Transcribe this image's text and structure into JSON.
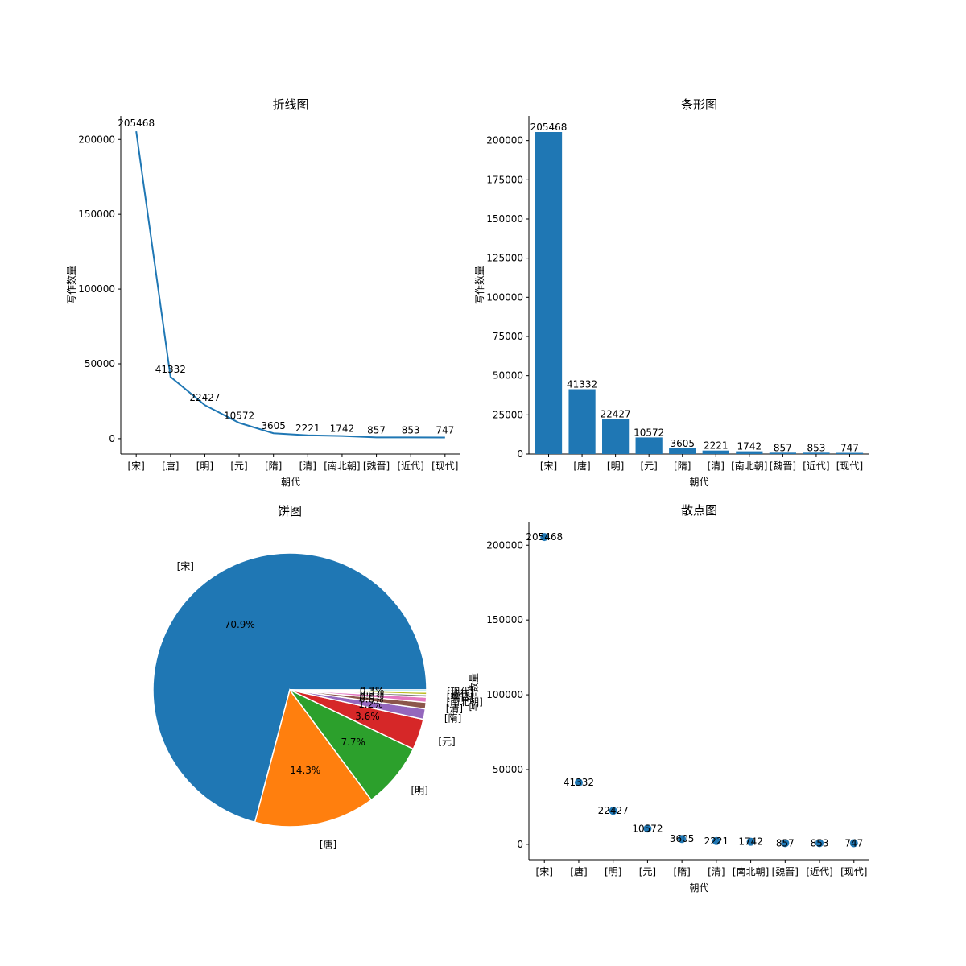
{
  "chart_data": [
    {
      "type": "line",
      "title": "折线图",
      "xlabel": "朝代",
      "ylabel": "写作数量",
      "categories": [
        "[宋]",
        "[唐]",
        "[明]",
        "[元]",
        "[隋]",
        "[清]",
        "[南北朝]",
        "[魏晋]",
        "[近代]",
        "[现代]"
      ],
      "values": [
        205468,
        41332,
        22427,
        10572,
        3605,
        2221,
        1742,
        857,
        853,
        747
      ],
      "yticks": [
        "0",
        "50000",
        "100000",
        "150000",
        "200000"
      ],
      "ylim": [
        -10274,
        215741
      ],
      "color": "#1f77b4"
    },
    {
      "type": "bar",
      "title": "条形图",
      "xlabel": "朝代",
      "ylabel": "写作数量",
      "categories": [
        "[宋]",
        "[唐]",
        "[明]",
        "[元]",
        "[隋]",
        "[清]",
        "[南北朝]",
        "[魏晋]",
        "[近代]",
        "[现代]"
      ],
      "values": [
        205468,
        41332,
        22427,
        10572,
        3605,
        2221,
        1742,
        857,
        853,
        747
      ],
      "yticks": [
        "0",
        "25000",
        "50000",
        "75000",
        "100000",
        "125000",
        "150000",
        "175000",
        "200000"
      ],
      "ylim": [
        0,
        215741
      ],
      "color": "#1f77b4"
    },
    {
      "type": "pie",
      "title": "饼图",
      "ylabel": "写作数量",
      "labels": [
        "[宋]",
        "[唐]",
        "[明]",
        "[元]",
        "[隋]",
        "[清]",
        "[南北朝]",
        "[魏晋]",
        "[近代]",
        "[现代]"
      ],
      "values": [
        205468,
        41332,
        22427,
        10572,
        3605,
        2221,
        1742,
        857,
        853,
        747
      ],
      "autopct": [
        "70.9%",
        "14.3%",
        "7.7%",
        "3.6%",
        "1.2%",
        "0.8%",
        "0.6%",
        "0.3%",
        "0.3%",
        "0.3%"
      ],
      "colors": [
        "#1f77b4",
        "#ff7f0e",
        "#2ca02c",
        "#d62728",
        "#9467bd",
        "#8c564b",
        "#e377c2",
        "#7f7f7f",
        "#bcbd22",
        "#17becf"
      ]
    },
    {
      "type": "scatter",
      "title": "散点图",
      "xlabel": "朝代",
      "categories": [
        "[宋]",
        "[唐]",
        "[明]",
        "[元]",
        "[隋]",
        "[清]",
        "[南北朝]",
        "[魏晋]",
        "[近代]",
        "[现代]"
      ],
      "values": [
        205468,
        41332,
        22427,
        10572,
        3605,
        2221,
        1742,
        857,
        853,
        747
      ],
      "yticks": [
        "0",
        "50000",
        "100000",
        "150000",
        "200000"
      ],
      "ylim": [
        -10274,
        215741
      ],
      "color": "#1f77b4"
    }
  ]
}
